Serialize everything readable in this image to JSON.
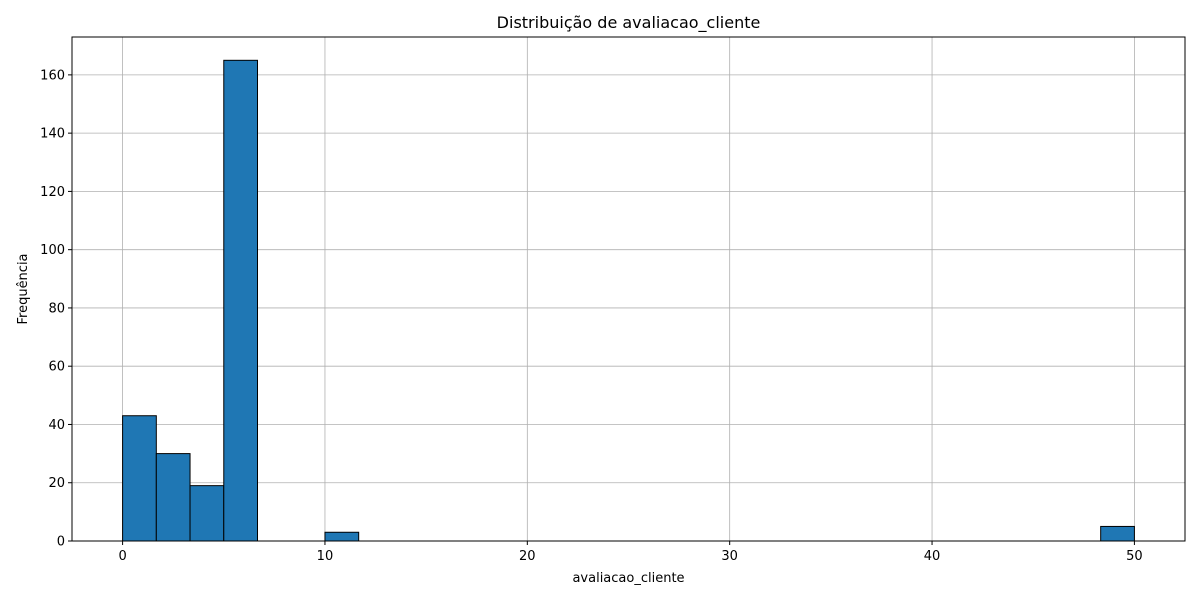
{
  "chart_data": {
    "type": "bar",
    "title": "Distribuição de avaliacao_cliente",
    "xlabel": "avaliacao_cliente",
    "ylabel": "Frequência",
    "xlim": [
      -2.5,
      52.5
    ],
    "ylim": [
      0,
      173
    ],
    "x_ticks": [
      0,
      10,
      20,
      30,
      40,
      50
    ],
    "y_ticks": [
      0,
      20,
      40,
      60,
      80,
      100,
      120,
      140,
      160
    ],
    "grid": true,
    "bin_edges": [
      0,
      1.6667,
      3.3333,
      5.0,
      6.6667,
      8.3333,
      10.0,
      11.6667,
      13.3333,
      15.0,
      16.6667,
      18.3333,
      20.0,
      21.6667,
      23.3333,
      25.0,
      26.6667,
      28.3333,
      30.0,
      31.6667,
      33.3333,
      35.0,
      36.6667,
      38.3333,
      40.0,
      41.6667,
      43.3333,
      45.0,
      46.6667,
      48.3333,
      50.0
    ],
    "values": [
      43,
      30,
      19,
      165,
      0,
      0,
      3,
      0,
      0,
      0,
      0,
      0,
      0,
      0,
      0,
      0,
      0,
      0,
      0,
      0,
      0,
      0,
      0,
      0,
      0,
      0,
      0,
      0,
      0,
      5
    ],
    "colors": {
      "bar_fill": "#1f77b4",
      "bar_edge": "#000000",
      "grid": "#b0b0b0",
      "axis": "#000000"
    }
  }
}
